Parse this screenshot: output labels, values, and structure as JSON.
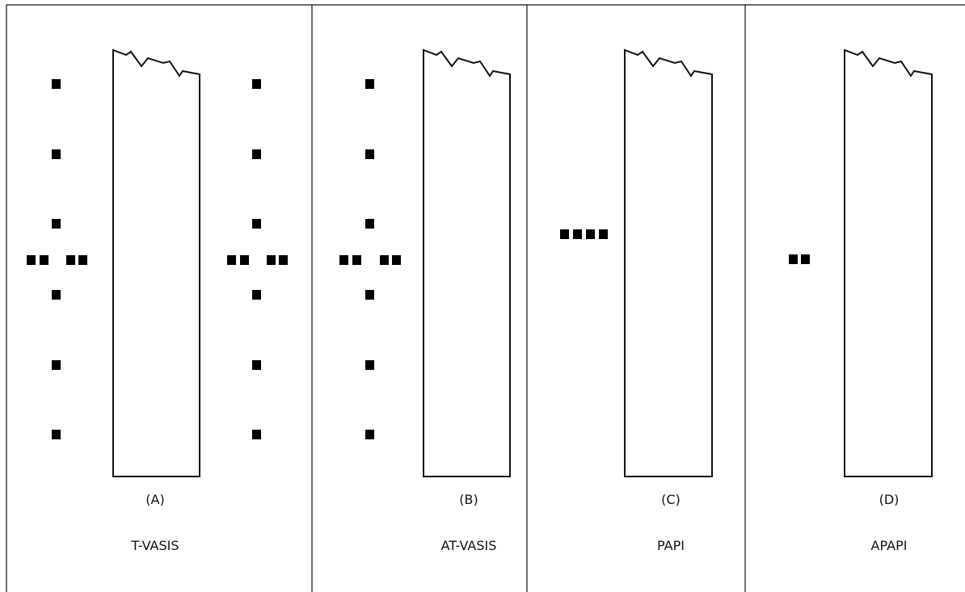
{
  "panels": [
    {
      "letter": "(A)",
      "name": "T-VASIS",
      "light_pattern": "T-shaped arrays on both sides of runway"
    },
    {
      "letter": "(B)",
      "name": "AT-VASIS",
      "light_pattern": "T-shaped array on one side of runway"
    },
    {
      "letter": "(C)",
      "name": "PAPI",
      "light_pattern": "four-unit wing bar on one side"
    },
    {
      "letter": "(D)",
      "name": "APAPI",
      "light_pattern": "two-unit wing bar on one side"
    }
  ],
  "colors": {
    "line": "#111111",
    "light": "#000000",
    "background": "#ffffff"
  }
}
